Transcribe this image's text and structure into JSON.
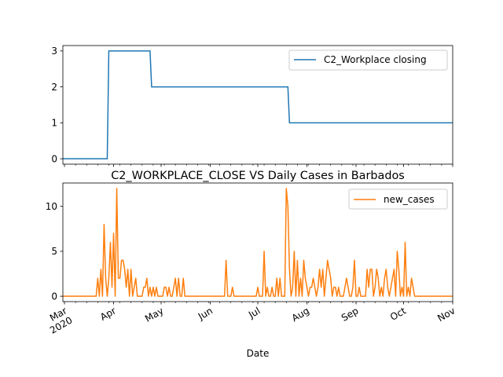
{
  "chart_data": [
    {
      "type": "line",
      "title": "",
      "xlabel": "",
      "ylabel": "",
      "xlim": [
        "2020-02-29",
        "2020-11-01"
      ],
      "ylim": [
        -0.15,
        3.15
      ],
      "yticks": [
        0,
        1,
        2,
        3
      ],
      "grid": false,
      "legend_position": "upper right",
      "series": [
        {
          "name": "C2_Workplace closing",
          "color": "#1f77b4",
          "points": [
            [
              "2020-02-29",
              0
            ],
            [
              "2020-03-28",
              0
            ],
            [
              "2020-03-29",
              3
            ],
            [
              "2020-04-24",
              3
            ],
            [
              "2020-04-25",
              2
            ],
            [
              "2020-07-20",
              2
            ],
            [
              "2020-07-21",
              1
            ],
            [
              "2020-11-01",
              1
            ]
          ]
        }
      ]
    },
    {
      "type": "line",
      "title": "C2_WORKPLACE_CLOSE VS Daily Cases in Barbados",
      "xlabel": "Date",
      "ylabel": "",
      "xlim": [
        "2020-02-29",
        "2020-11-01"
      ],
      "ylim": [
        -0.6,
        12.6
      ],
      "yticks": [
        0,
        5,
        10
      ],
      "grid": false,
      "legend_position": "upper right",
      "x_ticks": [
        {
          "date": "2020-03-01",
          "label": "Mar",
          "sublabel": "2020"
        },
        {
          "date": "2020-04-01",
          "label": "Apr"
        },
        {
          "date": "2020-05-01",
          "label": "May"
        },
        {
          "date": "2020-06-01",
          "label": "Jun"
        },
        {
          "date": "2020-07-01",
          "label": "Jul"
        },
        {
          "date": "2020-08-01",
          "label": "Aug"
        },
        {
          "date": "2020-09-01",
          "label": "Sep"
        },
        {
          "date": "2020-10-01",
          "label": "Oct"
        },
        {
          "date": "2020-11-01",
          "label": "Nov"
        }
      ],
      "series": [
        {
          "name": "new_cases",
          "color": "#ff7f0e",
          "points": [
            [
              "2020-02-29",
              0
            ],
            [
              "2020-03-21",
              0
            ],
            [
              "2020-03-22",
              2
            ],
            [
              "2020-03-23",
              0
            ],
            [
              "2020-03-24",
              3
            ],
            [
              "2020-03-25",
              0
            ],
            [
              "2020-03-26",
              8
            ],
            [
              "2020-03-27",
              2
            ],
            [
              "2020-03-28",
              0
            ],
            [
              "2020-03-29",
              2
            ],
            [
              "2020-03-30",
              6
            ],
            [
              "2020-03-31",
              1
            ],
            [
              "2020-04-01",
              7
            ],
            [
              "2020-04-02",
              0
            ],
            [
              "2020-04-03",
              12
            ],
            [
              "2020-04-04",
              2
            ],
            [
              "2020-04-05",
              2
            ],
            [
              "2020-04-06",
              4
            ],
            [
              "2020-04-07",
              4
            ],
            [
              "2020-04-08",
              3
            ],
            [
              "2020-04-09",
              1
            ],
            [
              "2020-04-10",
              3
            ],
            [
              "2020-04-11",
              0
            ],
            [
              "2020-04-12",
              3
            ],
            [
              "2020-04-13",
              0
            ],
            [
              "2020-04-14",
              1
            ],
            [
              "2020-04-15",
              2
            ],
            [
              "2020-04-16",
              0
            ],
            [
              "2020-04-19",
              0
            ],
            [
              "2020-04-20",
              1
            ],
            [
              "2020-04-21",
              1
            ],
            [
              "2020-04-22",
              2
            ],
            [
              "2020-04-23",
              0
            ],
            [
              "2020-04-24",
              1
            ],
            [
              "2020-04-25",
              0
            ],
            [
              "2020-04-26",
              1
            ],
            [
              "2020-04-27",
              0
            ],
            [
              "2020-04-28",
              1
            ],
            [
              "2020-04-29",
              0
            ],
            [
              "2020-05-02",
              0
            ],
            [
              "2020-05-03",
              1
            ],
            [
              "2020-05-04",
              1
            ],
            [
              "2020-05-05",
              0
            ],
            [
              "2020-05-06",
              1
            ],
            [
              "2020-05-07",
              0
            ],
            [
              "2020-05-08",
              0
            ],
            [
              "2020-05-09",
              1
            ],
            [
              "2020-05-10",
              2
            ],
            [
              "2020-05-11",
              0
            ],
            [
              "2020-05-12",
              2
            ],
            [
              "2020-05-13",
              0
            ],
            [
              "2020-05-14",
              0
            ],
            [
              "2020-05-15",
              2
            ],
            [
              "2020-05-16",
              0
            ],
            [
              "2020-06-10",
              0
            ],
            [
              "2020-06-11",
              4
            ],
            [
              "2020-06-12",
              0
            ],
            [
              "2020-06-14",
              0
            ],
            [
              "2020-06-15",
              1
            ],
            [
              "2020-06-16",
              0
            ],
            [
              "2020-06-30",
              0
            ],
            [
              "2020-07-01",
              1
            ],
            [
              "2020-07-02",
              0
            ],
            [
              "2020-07-04",
              0
            ],
            [
              "2020-07-05",
              5
            ],
            [
              "2020-07-06",
              0
            ],
            [
              "2020-07-07",
              1
            ],
            [
              "2020-07-08",
              0
            ],
            [
              "2020-07-09",
              0
            ],
            [
              "2020-07-10",
              1
            ],
            [
              "2020-07-11",
              0
            ],
            [
              "2020-07-12",
              0
            ],
            [
              "2020-07-13",
              2
            ],
            [
              "2020-07-14",
              0
            ],
            [
              "2020-07-15",
              2
            ],
            [
              "2020-07-16",
              0
            ],
            [
              "2020-07-18",
              0
            ],
            [
              "2020-07-19",
              12
            ],
            [
              "2020-07-20",
              10
            ],
            [
              "2020-07-21",
              3
            ],
            [
              "2020-07-22",
              0
            ],
            [
              "2020-07-23",
              1
            ],
            [
              "2020-07-24",
              5
            ],
            [
              "2020-07-25",
              0
            ],
            [
              "2020-07-26",
              4
            ],
            [
              "2020-07-27",
              0
            ],
            [
              "2020-07-28",
              2
            ],
            [
              "2020-07-29",
              0
            ],
            [
              "2020-07-30",
              4
            ],
            [
              "2020-07-31",
              2
            ],
            [
              "2020-08-01",
              1
            ],
            [
              "2020-08-02",
              0
            ],
            [
              "2020-08-03",
              1
            ],
            [
              "2020-08-04",
              1
            ],
            [
              "2020-08-05",
              2
            ],
            [
              "2020-08-06",
              1
            ],
            [
              "2020-08-07",
              0
            ],
            [
              "2020-08-08",
              1
            ],
            [
              "2020-08-09",
              3
            ],
            [
              "2020-08-10",
              1
            ],
            [
              "2020-08-11",
              3
            ],
            [
              "2020-08-12",
              0
            ],
            [
              "2020-08-13",
              2
            ],
            [
              "2020-08-14",
              4
            ],
            [
              "2020-08-15",
              3
            ],
            [
              "2020-08-16",
              2
            ],
            [
              "2020-08-17",
              0
            ],
            [
              "2020-08-18",
              1
            ],
            [
              "2020-08-19",
              1
            ],
            [
              "2020-08-20",
              0
            ],
            [
              "2020-08-21",
              1
            ],
            [
              "2020-08-22",
              0
            ],
            [
              "2020-08-24",
              0
            ],
            [
              "2020-08-25",
              1
            ],
            [
              "2020-08-26",
              2
            ],
            [
              "2020-08-27",
              1
            ],
            [
              "2020-08-28",
              0
            ],
            [
              "2020-08-29",
              0
            ],
            [
              "2020-08-30",
              1
            ],
            [
              "2020-08-31",
              4
            ],
            [
              "2020-09-01",
              0
            ],
            [
              "2020-09-02",
              0
            ],
            [
              "2020-09-03",
              1
            ],
            [
              "2020-09-04",
              0
            ],
            [
              "2020-09-07",
              0
            ],
            [
              "2020-09-08",
              3
            ],
            [
              "2020-09-09",
              1
            ],
            [
              "2020-09-10",
              3
            ],
            [
              "2020-09-11",
              3
            ],
            [
              "2020-09-12",
              0
            ],
            [
              "2020-09-13",
              1
            ],
            [
              "2020-09-14",
              3
            ],
            [
              "2020-09-15",
              2
            ],
            [
              "2020-09-16",
              0
            ],
            [
              "2020-09-17",
              1
            ],
            [
              "2020-09-18",
              0
            ],
            [
              "2020-09-19",
              2
            ],
            [
              "2020-09-20",
              3
            ],
            [
              "2020-09-21",
              1
            ],
            [
              "2020-09-22",
              0
            ],
            [
              "2020-09-23",
              1
            ],
            [
              "2020-09-24",
              2
            ],
            [
              "2020-09-25",
              3
            ],
            [
              "2020-09-26",
              0
            ],
            [
              "2020-09-27",
              5
            ],
            [
              "2020-09-28",
              3
            ],
            [
              "2020-09-29",
              0
            ],
            [
              "2020-09-30",
              1
            ],
            [
              "2020-10-01",
              0
            ],
            [
              "2020-10-02",
              6
            ],
            [
              "2020-10-03",
              0
            ],
            [
              "2020-10-04",
              1
            ],
            [
              "2020-10-05",
              0
            ],
            [
              "2020-10-06",
              2
            ],
            [
              "2020-10-07",
              1
            ],
            [
              "2020-10-08",
              0
            ],
            [
              "2020-11-01",
              0
            ]
          ]
        }
      ]
    }
  ]
}
